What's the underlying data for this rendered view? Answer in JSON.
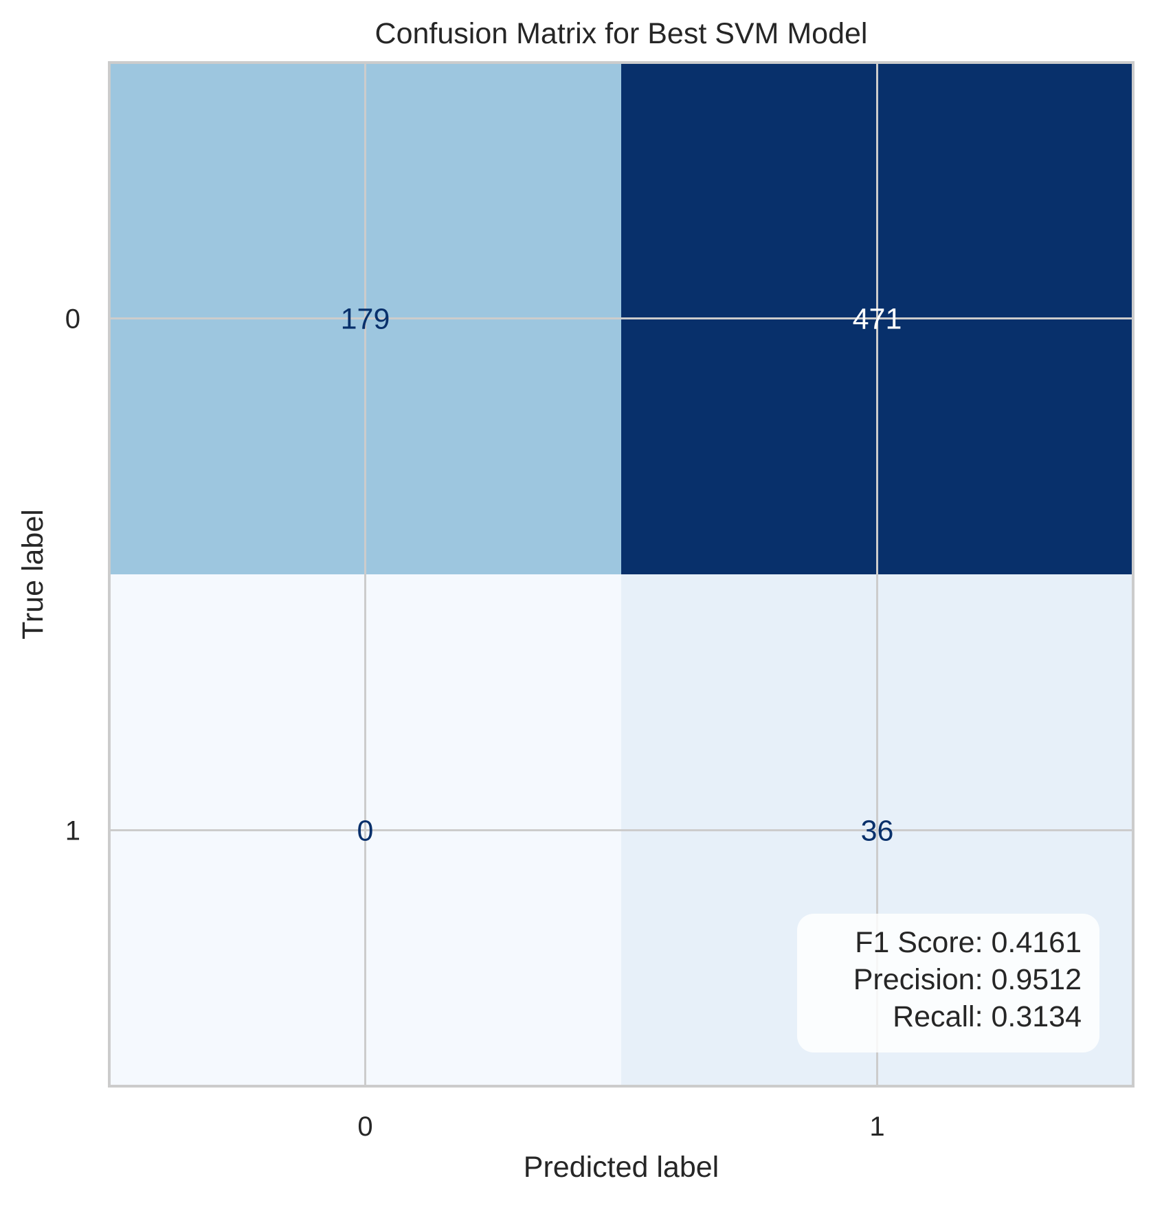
{
  "chart_data": {
    "type": "heatmap",
    "title": "Confusion Matrix for Best SVM Model",
    "xlabel": "Predicted label",
    "ylabel": "True label",
    "x_categories": [
      "0",
      "1"
    ],
    "y_categories": [
      "0",
      "1"
    ],
    "matrix": [
      [
        179,
        471
      ],
      [
        0,
        36
      ]
    ],
    "colormap": "Blues",
    "cell_colors": [
      [
        "#9dc6df",
        "#08306b"
      ],
      [
        "#f5f9fe",
        "#e7f0f9"
      ]
    ],
    "cell_text_colors": [
      [
        "#08306b",
        "#ffffff"
      ],
      [
        "#08306b",
        "#08306b"
      ]
    ],
    "grid": true,
    "metrics_box_position": "bottom-right",
    "metrics": [
      "F1 Score: 0.4161",
      "Precision: 0.9512",
      "Recall: 0.3134"
    ]
  },
  "colors": {
    "grid": "#cccccc",
    "frame": "#cccccc",
    "text": "#262626"
  }
}
